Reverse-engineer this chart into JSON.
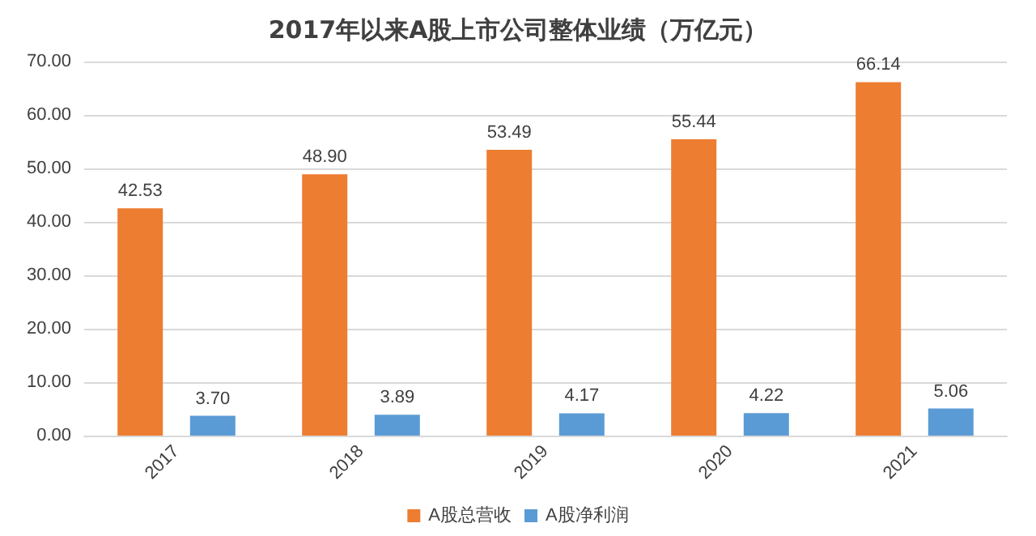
{
  "chart_data": {
    "type": "bar",
    "title": "2017年以来A股上市公司整体业绩（万亿元）",
    "categories": [
      "2017",
      "2018",
      "2019",
      "2020",
      "2021"
    ],
    "series": [
      {
        "name": "A股总营收",
        "color": "#ed7d31",
        "values": [
          42.53,
          48.9,
          53.49,
          55.44,
          66.14
        ],
        "value_labels": [
          "42.53",
          "48.90",
          "53.49",
          "55.44",
          "66.14"
        ]
      },
      {
        "name": "A股净利润",
        "color": "#5b9bd5",
        "values": [
          3.7,
          3.89,
          4.17,
          4.22,
          5.06
        ],
        "value_labels": [
          "3.70",
          "3.89",
          "4.17",
          "4.22",
          "5.06"
        ]
      }
    ],
    "ylim": [
      0,
      70
    ],
    "yticks": [
      {
        "value": 0,
        "label": "0.00"
      },
      {
        "value": 10,
        "label": "10.00"
      },
      {
        "value": 20,
        "label": "20.00"
      },
      {
        "value": 30,
        "label": "30.00"
      },
      {
        "value": 40,
        "label": "40.00"
      },
      {
        "value": 50,
        "label": "50.00"
      },
      {
        "value": 60,
        "label": "60.00"
      },
      {
        "value": 70,
        "label": "70.00"
      }
    ],
    "grid": "y",
    "legend": "bottom"
  }
}
